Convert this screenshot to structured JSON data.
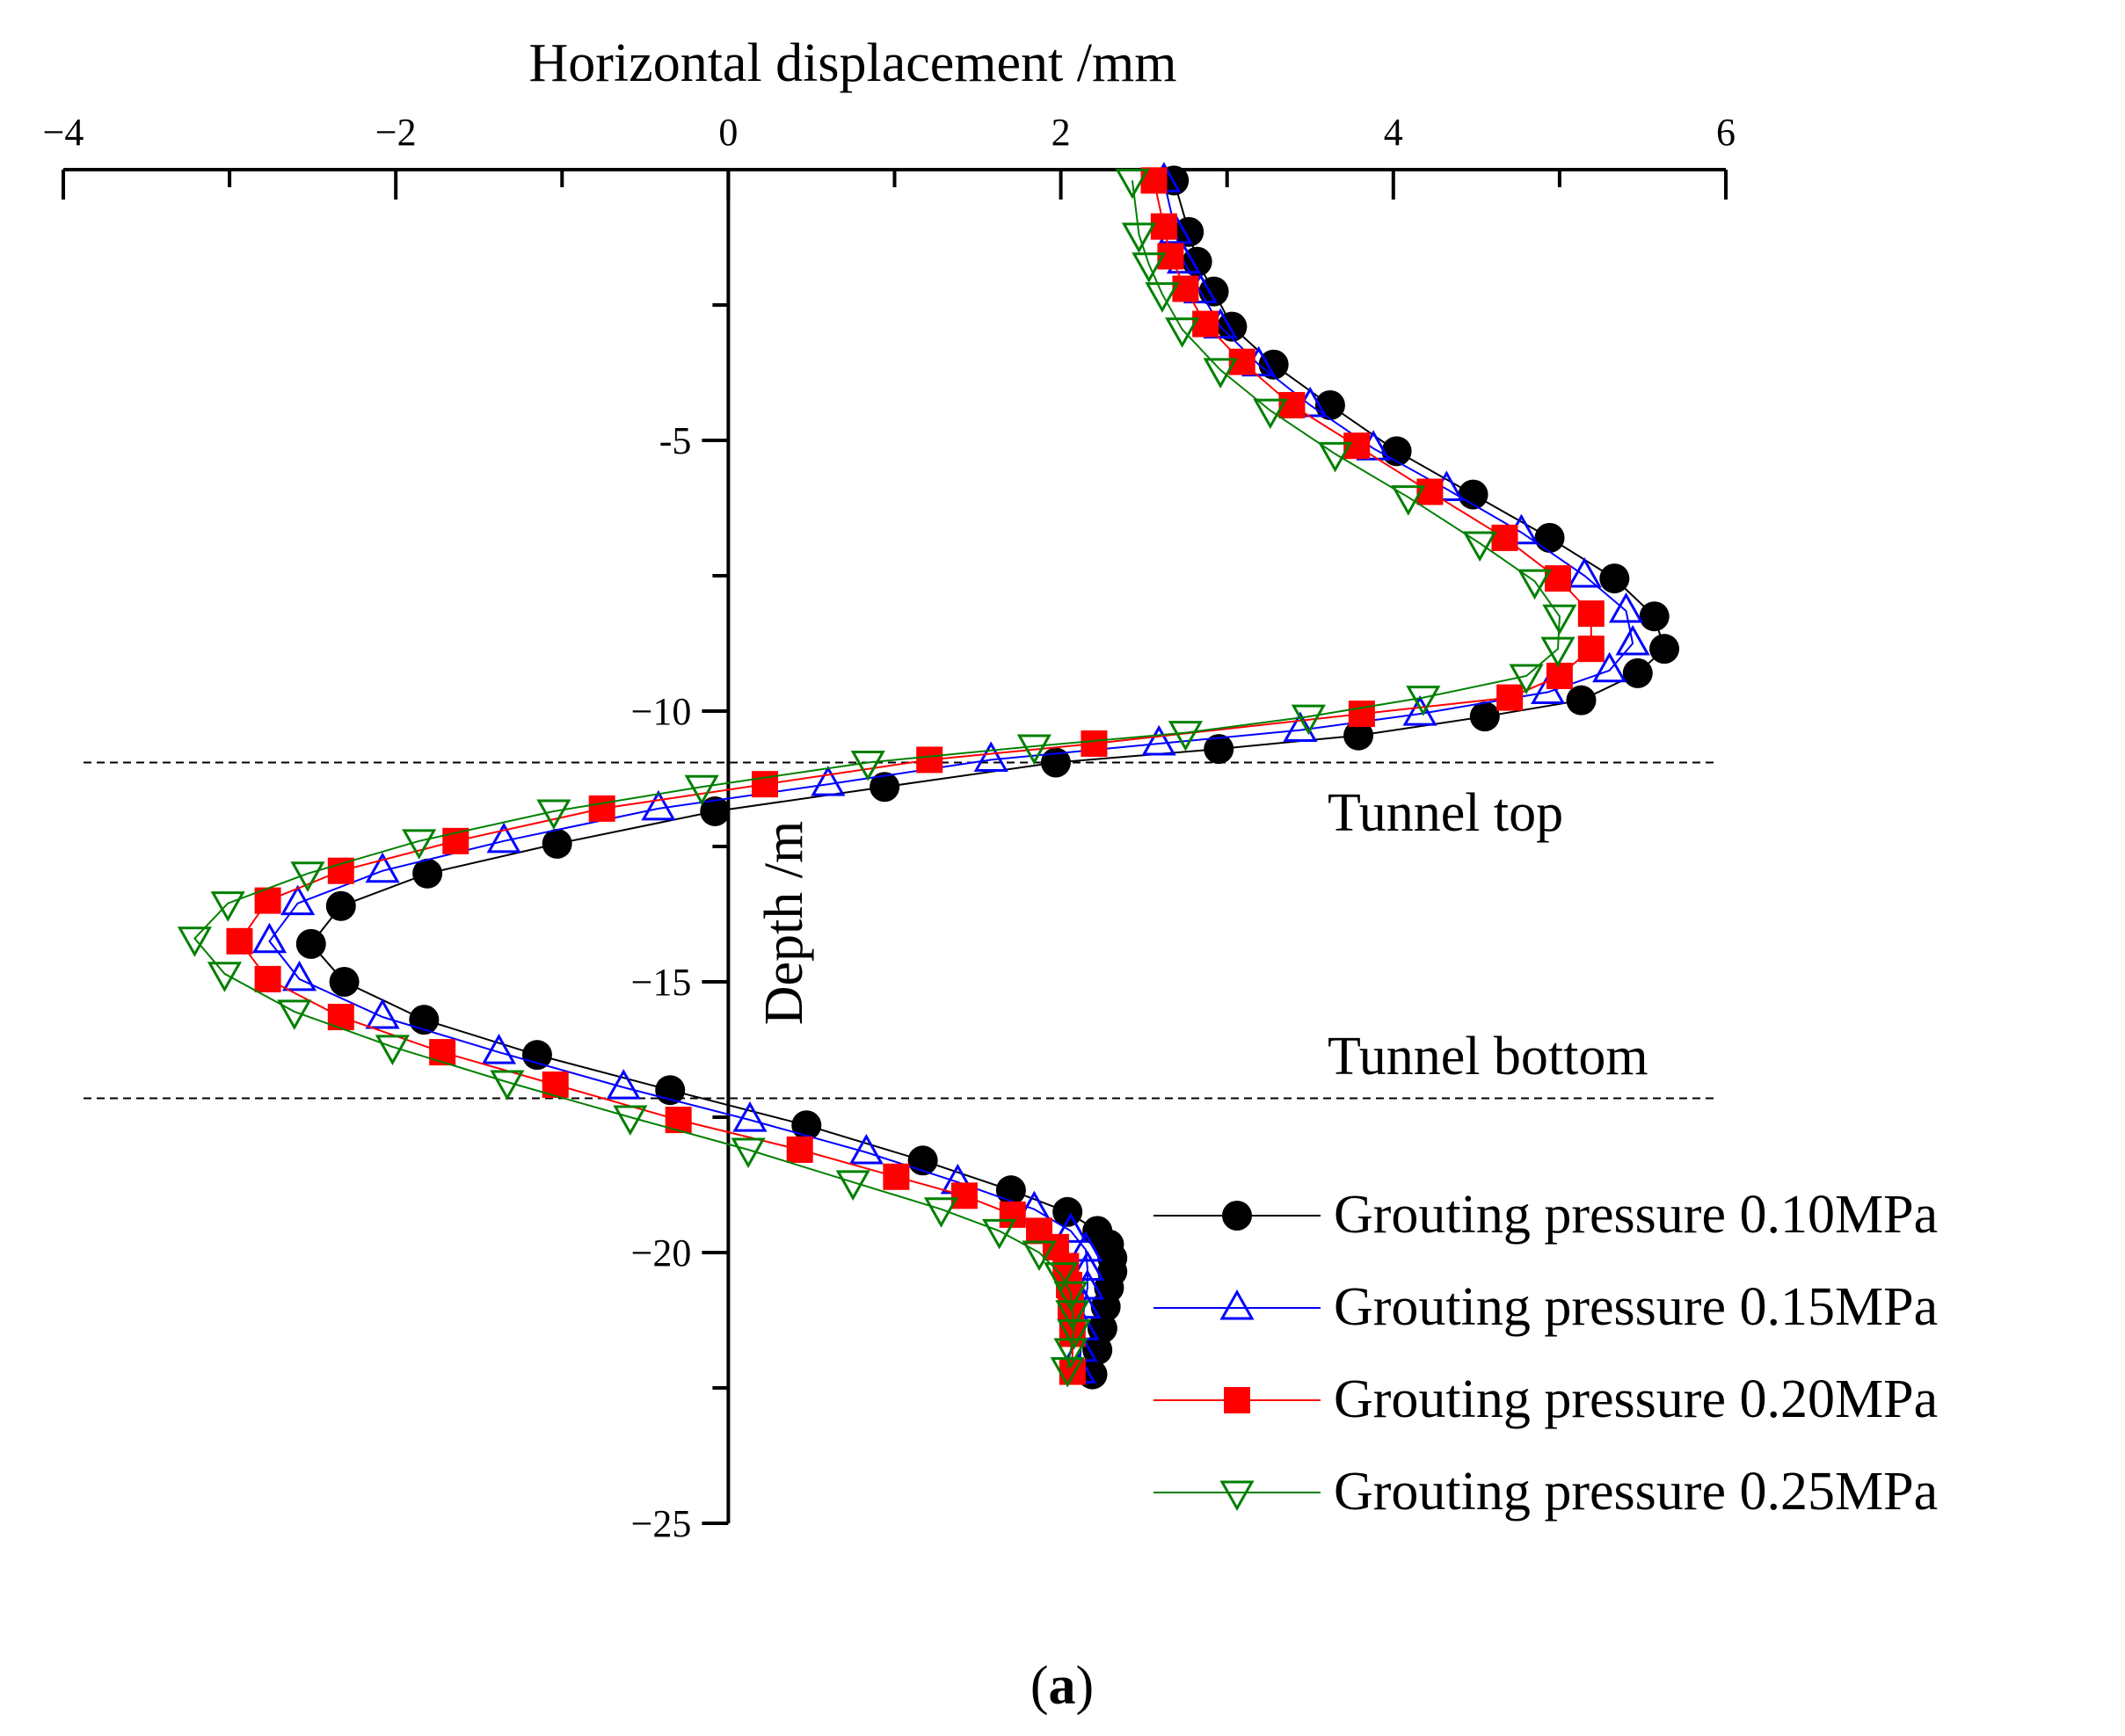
{
  "chart_data": {
    "type": "line",
    "title": "",
    "xlabel": "Horizontal displacement /mm",
    "ylabel": "Depth /m",
    "xlim": [
      -4,
      6
    ],
    "ylim": [
      -25,
      0
    ],
    "x_ticks": [
      -4,
      -2,
      0,
      2,
      4,
      6
    ],
    "x_tick_labels": [
      "−4",
      "−2",
      "0",
      "2",
      "4",
      "6"
    ],
    "y_ticks": [
      -5,
      -10,
      -15,
      -20,
      -25
    ],
    "y_tick_labels": [
      "-5",
      "−10",
      "−15",
      "−20",
      "−25"
    ],
    "x_axis_position": "top",
    "y_axis_at_x": 0,
    "grid": false,
    "legend_position": "bottom-right",
    "annotations": [
      {
        "text": "Tunnel top",
        "depth": -10.95
      },
      {
        "text": "Tunnel bottom",
        "depth": -17.15
      }
    ],
    "caption_open": "(",
    "caption_letter": "a",
    "caption_close": ")",
    "series": [
      {
        "name": "Grouting pressure 0.10MPa",
        "color": "#000000",
        "marker": "filled-circle",
        "x": [
          2.68,
          2.77,
          2.82,
          2.92,
          3.03,
          3.28,
          3.62,
          4.02,
          4.48,
          4.94,
          5.33,
          5.57,
          5.63,
          5.47,
          5.13,
          4.55,
          3.79,
          2.95,
          1.97,
          0.94,
          -0.08,
          -1.03,
          -1.81,
          -2.33,
          -2.51,
          -2.31,
          -1.83,
          -1.15,
          -0.35,
          0.47,
          1.17,
          1.7,
          2.04,
          2.22,
          2.29,
          2.31,
          2.31,
          2.29,
          2.27,
          2.25,
          2.22,
          2.19
        ],
        "y": [
          -0.2,
          -1.15,
          -1.7,
          -2.25,
          -2.9,
          -3.6,
          -4.35,
          -5.2,
          -6.0,
          -6.8,
          -7.55,
          -8.25,
          -8.85,
          -9.3,
          -9.8,
          -10.1,
          -10.45,
          -10.7,
          -10.95,
          -11.4,
          -11.85,
          -12.45,
          -13.0,
          -13.6,
          -14.3,
          -15.0,
          -15.7,
          -16.35,
          -17.0,
          -17.65,
          -18.3,
          -18.85,
          -19.25,
          -19.6,
          -19.85,
          -20.1,
          -20.35,
          -20.65,
          -21.0,
          -21.4,
          -21.8,
          -22.25
        ]
      },
      {
        "name": "Grouting pressure 0.15MPa",
        "color": "#0000ff",
        "marker": "open-triangle-up",
        "x": [
          2.62,
          2.69,
          2.74,
          2.84,
          2.96,
          3.19,
          3.5,
          3.88,
          4.32,
          4.77,
          5.15,
          5.4,
          5.44,
          5.3,
          4.93,
          4.16,
          3.44,
          2.59,
          1.58,
          0.6,
          -0.42,
          -1.35,
          -2.08,
          -2.59,
          -2.76,
          -2.58,
          -2.08,
          -1.38,
          -0.63,
          0.13,
          0.83,
          1.38,
          1.84,
          2.06,
          2.15,
          2.16,
          2.16,
          2.14,
          2.13,
          2.12,
          2.11
        ],
        "y": [
          -0.2,
          -1.15,
          -1.7,
          -2.25,
          -2.9,
          -3.6,
          -4.35,
          -5.15,
          -5.9,
          -6.7,
          -7.5,
          -8.15,
          -8.75,
          -9.25,
          -9.65,
          -10.05,
          -10.35,
          -10.6,
          -10.9,
          -11.35,
          -11.8,
          -12.4,
          -12.95,
          -13.55,
          -14.25,
          -14.95,
          -15.65,
          -16.3,
          -16.95,
          -17.55,
          -18.15,
          -18.7,
          -19.2,
          -19.6,
          -19.95,
          -20.3,
          -20.65,
          -21.0,
          -21.4,
          -21.8,
          -22.2
        ]
      },
      {
        "name": "Grouting pressure 0.20MPa",
        "color": "#ff0000",
        "marker": "filled-square",
        "x": [
          2.56,
          2.62,
          2.66,
          2.75,
          2.87,
          3.09,
          3.39,
          3.78,
          4.22,
          4.67,
          4.99,
          5.19,
          5.19,
          5.0,
          4.7,
          3.81,
          2.2,
          1.21,
          0.22,
          -0.76,
          -1.64,
          -2.33,
          -2.77,
          -2.94,
          -2.77,
          -2.33,
          -1.72,
          -1.04,
          -0.3,
          0.43,
          1.01,
          1.42,
          1.71,
          1.87,
          1.97,
          2.03,
          2.05,
          2.06,
          2.07,
          2.07
        ],
        "y": [
          -0.2,
          -1.05,
          -1.6,
          -2.2,
          -2.85,
          -3.55,
          -4.35,
          -5.1,
          -5.95,
          -6.8,
          -7.55,
          -8.2,
          -8.85,
          -9.35,
          -9.75,
          -10.05,
          -10.6,
          -10.9,
          -11.35,
          -11.8,
          -12.4,
          -12.95,
          -13.5,
          -14.25,
          -14.95,
          -15.65,
          -16.3,
          -16.9,
          -17.55,
          -18.1,
          -18.6,
          -18.95,
          -19.3,
          -19.6,
          -19.9,
          -20.25,
          -20.6,
          -21.0,
          -21.5,
          -22.2
        ]
      },
      {
        "name": "Grouting pressure 0.25MPa",
        "color": "#008000",
        "marker": "open-triangle-down",
        "x": [
          2.43,
          2.47,
          2.53,
          2.61,
          2.73,
          2.96,
          3.26,
          3.65,
          4.09,
          4.52,
          4.85,
          5.0,
          4.99,
          4.8,
          4.18,
          3.49,
          2.75,
          1.84,
          0.84,
          -0.16,
          -1.05,
          -1.86,
          -2.53,
          -3.01,
          -3.21,
          -3.03,
          -2.61,
          -2.02,
          -1.33,
          -0.59,
          0.12,
          0.75,
          1.28,
          1.63,
          1.87,
          2.0,
          2.06,
          2.07,
          2.08,
          2.06,
          2.04
        ],
        "y": [
          -0.2,
          -1.2,
          -1.75,
          -2.3,
          -2.95,
          -3.7,
          -4.45,
          -5.25,
          -6.05,
          -6.9,
          -7.6,
          -8.25,
          -8.85,
          -9.35,
          -9.75,
          -10.1,
          -10.4,
          -10.65,
          -10.95,
          -11.4,
          -11.85,
          -12.4,
          -13.0,
          -13.55,
          -14.2,
          -14.85,
          -15.55,
          -16.2,
          -16.85,
          -17.5,
          -18.1,
          -18.7,
          -19.2,
          -19.6,
          -20.0,
          -20.4,
          -20.75,
          -21.1,
          -21.45,
          -21.8,
          -22.15
        ]
      }
    ]
  }
}
